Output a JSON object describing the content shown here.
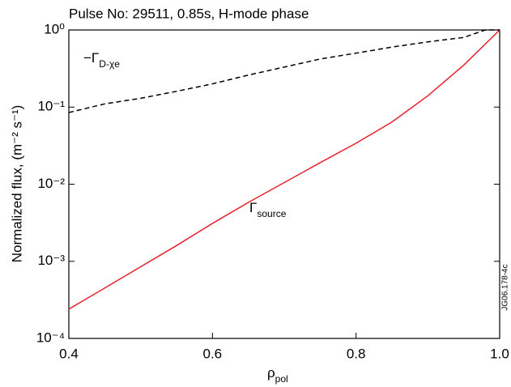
{
  "chart_data": {
    "type": "line",
    "title": "Pulse No: 29511, 0.85s, H-mode phase",
    "x_label": {
      "text": "ρ",
      "subscript": "pol"
    },
    "y_label": "Normalized flux, (m⁻² s⁻¹)",
    "watermark": "JG06.178-4c",
    "log_y": true,
    "grid": false,
    "xlim": [
      0.4,
      1.0
    ],
    "ylim": [
      0.0001,
      1
    ],
    "xticks": [
      0.4,
      0.6,
      0.8,
      {
        "value": 1,
        "label": "1.0"
      }
    ],
    "yticks": [
      {
        "value": 0.0001,
        "label": "10⁻⁴"
      },
      {
        "value": 0.001,
        "label": "10⁻³"
      },
      {
        "value": 0.01,
        "label": "10⁻²"
      },
      {
        "value": 0.1,
        "label": "10⁻¹"
      },
      {
        "value": 1,
        "label": "10⁰"
      }
    ],
    "series": [
      {
        "name": "Γsource",
        "color": "#e8202a",
        "dash": false,
        "x": [
          0.4,
          0.45,
          0.5,
          0.55,
          0.6,
          0.65,
          0.7,
          0.75,
          0.8,
          0.85,
          0.9,
          0.95,
          1.0
        ],
        "values": [
          0.00024,
          0.00045,
          0.00085,
          0.0016,
          0.0031,
          0.0058,
          0.0105,
          0.019,
          0.034,
          0.064,
          0.14,
          0.35,
          1.0
        ]
      },
      {
        "name": "−ΓD-χe",
        "color": "#000000",
        "dash": true,
        "x": [
          0.4,
          0.45,
          0.5,
          0.55,
          0.6,
          0.65,
          0.7,
          0.75,
          0.8,
          0.85,
          0.9,
          0.95,
          0.98,
          1.0
        ],
        "values": [
          0.085,
          0.11,
          0.13,
          0.16,
          0.2,
          0.26,
          0.33,
          0.42,
          0.5,
          0.6,
          0.7,
          0.8,
          1.0,
          1.0
        ]
      }
    ],
    "annotations": [
      {
        "text": "−Γ",
        "subscript": "D-χe"
      },
      {
        "text": "Γ",
        "subscript": "source"
      }
    ]
  }
}
